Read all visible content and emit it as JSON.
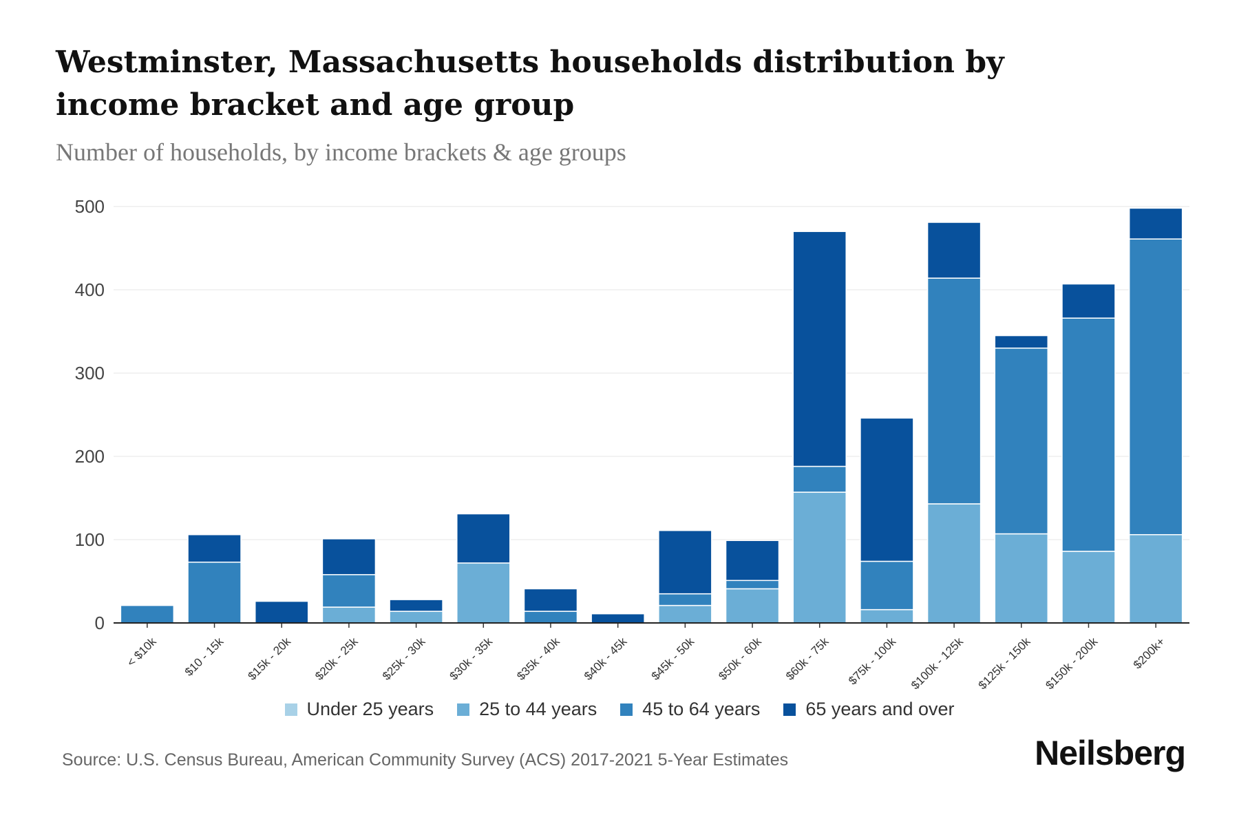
{
  "chart_data": {
    "type": "bar",
    "stacked": true,
    "title": "Westminster, Massachusetts households distribution by income bracket and age group",
    "subtitle": "Number of households, by income brackets & age groups",
    "categories": [
      "< $10k",
      "$10 - 15k",
      "$15k - 20k",
      "$20k - 25k",
      "$25k - 30k",
      "$30k - 35k",
      "$35k - 40k",
      "$40k - 45k",
      "$45k - 50k",
      "$50k - 60k",
      "$60k - 75k",
      "$75k - 100k",
      "$100k - 125k",
      "$125k - 150k",
      "$150k - 200k",
      "$200k+"
    ],
    "series": [
      {
        "name": "Under 25 years",
        "color": "#a8d1e7",
        "values": [
          0,
          0,
          0,
          0,
          0,
          0,
          0,
          0,
          0,
          0,
          0,
          0,
          0,
          0,
          0,
          0
        ]
      },
      {
        "name": "25 to 44 years",
        "color": "#6baed6",
        "values": [
          0,
          0,
          0,
          19,
          14,
          72,
          0,
          0,
          21,
          41,
          157,
          16,
          143,
          107,
          86,
          106
        ]
      },
      {
        "name": "45 to 64 years",
        "color": "#3182bd",
        "values": [
          21,
          73,
          0,
          39,
          0,
          0,
          14,
          0,
          14,
          10,
          31,
          58,
          271,
          223,
          280,
          355
        ]
      },
      {
        "name": "65 years and over",
        "color": "#08519c",
        "values": [
          0,
          33,
          26,
          43,
          14,
          59,
          27,
          11,
          76,
          48,
          282,
          172,
          67,
          15,
          41,
          37
        ]
      }
    ],
    "yticks": [
      0,
      100,
      200,
      300,
      400,
      500
    ],
    "ylim": [
      0,
      500
    ],
    "grid": true,
    "legend": "bottom"
  },
  "source": "Source: U.S. Census Bureau, American Community Survey (ACS) 2017-2021 5-Year Estimates",
  "logo": "Neilsberg"
}
